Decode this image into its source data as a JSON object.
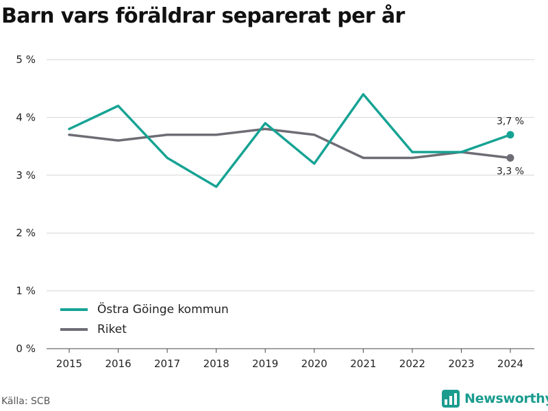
{
  "chart_data": {
    "type": "line",
    "title": "Barn vars föräldrar separerat per år",
    "xlabel": "",
    "ylabel": "",
    "x": [
      "2015",
      "2016",
      "2017",
      "2018",
      "2019",
      "2020",
      "2021",
      "2022",
      "2023",
      "2024"
    ],
    "ylim": [
      0,
      5
    ],
    "yticks": [
      "0 %",
      "1 %",
      "2 %",
      "3 %",
      "4 %",
      "5 %"
    ],
    "grid": true,
    "legend_position": "bottom-left",
    "series": [
      {
        "name": "Östra Göinge kommun",
        "color": "#16a394",
        "values": [
          3.8,
          4.2,
          3.3,
          2.8,
          3.9,
          3.2,
          4.4,
          3.4,
          3.4,
          3.7
        ],
        "end_label": "3,7 %"
      },
      {
        "name": "Riket",
        "color": "#6e6c74",
        "values": [
          3.7,
          3.6,
          3.7,
          3.7,
          3.8,
          3.7,
          3.3,
          3.3,
          3.4,
          3.3
        ],
        "end_label": "3,3 %"
      }
    ]
  },
  "footer": {
    "source": "Källa: SCB",
    "brand": "Newsworthy",
    "brand_color": "#1a9c8e",
    "brand_icon": "newsworthy-logo-icon"
  }
}
